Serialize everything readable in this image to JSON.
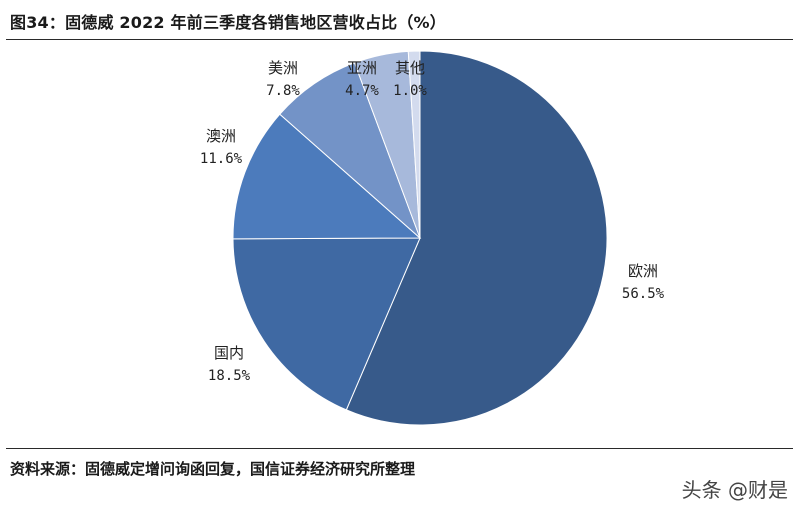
{
  "title": "图34：固德威 2022 年前三季度各销售地区营收占比（%）",
  "source": "资料来源：固德威定增问询函回复，国信证券经济研究所整理",
  "watermark": "头条 @财是",
  "chart_data": {
    "type": "pie",
    "title": "图34：固德威 2022 年前三季度各销售地区营收占比（%）",
    "slices": [
      {
        "name": "欧洲",
        "value": 56.5,
        "label": "56.5%",
        "color": "#375a8a"
      },
      {
        "name": "国内",
        "value": 18.5,
        "label": "18.5%",
        "color": "#3f69a3"
      },
      {
        "name": "澳洲",
        "value": 11.6,
        "label": "11.6%",
        "color": "#4c7bbc"
      },
      {
        "name": "美洲",
        "value": 7.8,
        "label": "7.8%",
        "color": "#7393c7"
      },
      {
        "name": "亚洲",
        "value": 4.7,
        "label": "4.7%",
        "color": "#a7b9db"
      },
      {
        "name": "其他",
        "value": 1.0,
        "label": "1.0%",
        "color": "#d3dbee"
      }
    ],
    "start": "12 o'clock",
    "direction": "clockwise",
    "legend": "none"
  }
}
